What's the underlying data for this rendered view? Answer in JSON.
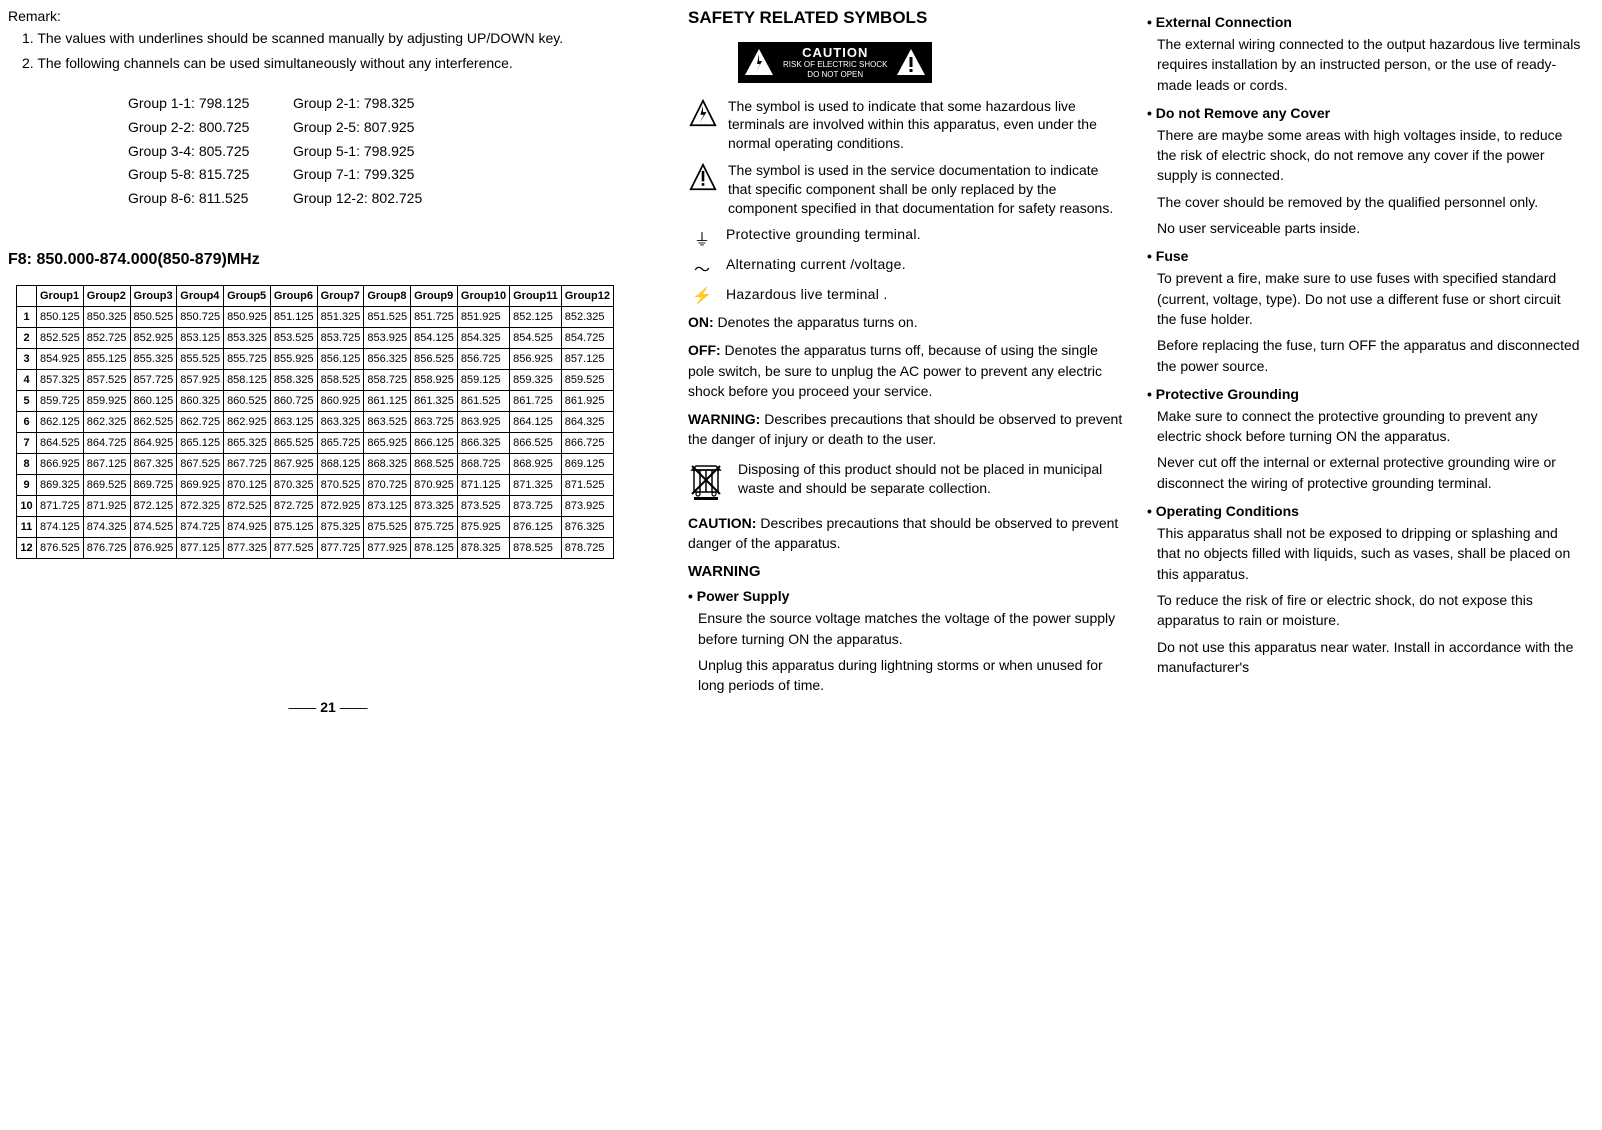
{
  "remark": {
    "title": "Remark:",
    "items": [
      "1. The values with underlines should  be scanned manually by adjusting UP/DOWN key.",
      "2. The following channels can be used simultaneously without any interference."
    ]
  },
  "group_pairs": {
    "left": [
      "Group 1-1: 798.125",
      "Group 2-2: 800.725",
      "Group 3-4: 805.725",
      "Group 5-8: 815.725",
      "Group 8-6: 811.525"
    ],
    "right": [
      "Group 2-1: 798.325",
      "Group 2-5: 807.925",
      "Group 5-1: 798.925",
      "Group 7-1: 799.325",
      "Group 12-2: 802.725"
    ]
  },
  "f8_title": "F8: 850.000-874.000(850-879)MHz",
  "freq_table": {
    "headers": [
      "",
      "Group1",
      "Group2",
      "Group3",
      "Group4",
      "Group5",
      "Group6",
      "Group7",
      "Group8",
      "Group9",
      "Group10",
      "Group11",
      "Group12"
    ],
    "rows": [
      [
        "1",
        "850.125",
        "850.325",
        "850.525",
        "850.725",
        "850.925",
        "851.125",
        "851.325",
        "851.525",
        "851.725",
        "851.925",
        "852.125",
        "852.325"
      ],
      [
        "2",
        "852.525",
        "852.725",
        "852.925",
        "853.125",
        "853.325",
        "853.525",
        "853.725",
        "853.925",
        "854.125",
        "854.325",
        "854.525",
        "854.725"
      ],
      [
        "3",
        "854.925",
        "855.125",
        "855.325",
        "855.525",
        "855.725",
        "855.925",
        "856.125",
        "856.325",
        "856.525",
        "856.725",
        "856.925",
        "857.125"
      ],
      [
        "4",
        "857.325",
        "857.525",
        "857.725",
        "857.925",
        "858.125",
        "858.325",
        "858.525",
        "858.725",
        "858.925",
        "859.125",
        "859.325",
        "859.525"
      ],
      [
        "5",
        "859.725",
        "859.925",
        "860.125",
        "860.325",
        "860.525",
        "860.725",
        "860.925",
        "861.125",
        "861.325",
        "861.525",
        "861.725",
        "861.925"
      ],
      [
        "6",
        "862.125",
        "862.325",
        "862.525",
        "862.725",
        "862.925",
        "863.125",
        "863.325",
        "863.525",
        "863.725",
        "863.925",
        "864.125",
        "864.325"
      ],
      [
        "7",
        "864.525",
        "864.725",
        "864.925",
        "865.125",
        "865.325",
        "865.525",
        "865.725",
        "865.925",
        "866.125",
        "866.325",
        "866.525",
        "866.725"
      ],
      [
        "8",
        "866.925",
        "867.125",
        "867.325",
        "867.525",
        "867.725",
        "867.925",
        "868.125",
        "868.325",
        "868.525",
        "868.725",
        "868.925",
        "869.125"
      ],
      [
        "9",
        "869.325",
        "869.525",
        "869.725",
        "869.925",
        "870.125",
        "870.325",
        "870.525",
        "870.725",
        "870.925",
        "871.125",
        "871.325",
        "871.525"
      ],
      [
        "10",
        "871.725",
        "871.925",
        "872.125",
        "872.325",
        "872.525",
        "872.725",
        "872.925",
        "873.125",
        "873.325",
        "873.525",
        "873.725",
        "873.925"
      ],
      [
        "11",
        "874.125",
        "874.325",
        "874.525",
        "874.725",
        "874.925",
        "875.125",
        "875.325",
        "875.525",
        "875.725",
        "875.925",
        "876.125",
        "876.325"
      ],
      [
        "12",
        "876.525",
        "876.725",
        "876.925",
        "877.125",
        "877.325",
        "877.525",
        "877.725",
        "877.925",
        "878.125",
        "878.325",
        "878.525",
        "878.725"
      ]
    ]
  },
  "page_number": "21",
  "safety_heading": "SAFETY RELATED SYMBOLS",
  "caution_box": {
    "title": "CAUTION",
    "sub1": "RISK OF ELECTRIC SHOCK",
    "sub2": "DO NOT OPEN"
  },
  "symbol_bolt_text": "The symbol is used to indicate that some hazardous live terminals are involved within this apparatus, even under the normal operating conditions.",
  "symbol_excl_text": "The symbol is used in the service documentation to indicate that specific component shall be only replaced by the component specified in that documentation for safety reasons.",
  "defs": [
    {
      "sym": "⏚",
      "txt": "Protective grounding terminal."
    },
    {
      "sym": "〜",
      "txt": "Alternating current /voltage."
    },
    {
      "sym": "⚡",
      "txt": "Hazardous live terminal ."
    }
  ],
  "on_txt_label": "ON:",
  "on_txt": " Denotes the apparatus turns on.",
  "off_txt_label": "OFF:",
  "off_txt": " Denotes the apparatus turns off, because of using the single pole switch, be sure to unplug the AC power to prevent any electric shock before you proceed your service.",
  "warning_txt_label": "WARNING:",
  "warning_txt": " Describes precautions that should be observed to prevent the danger of injury or death to the user.",
  "dispose_txt": "Disposing of this product should not be placed in municipal waste and should be separate collection.",
  "caution_txt_label": "CAUTION:",
  "caution_txt": " Describes precautions that should be observed to prevent danger of the apparatus.",
  "warning_heading": "WARNING",
  "power_supply": {
    "h": "Power Supply",
    "p1": "Ensure the source voltage matches the voltage of the power supply before turning ON the apparatus.",
    "p2": "Unplug this apparatus during lightning storms or when unused for long periods of time."
  },
  "ext_conn": {
    "h": "External Connection",
    "p1": "The external wiring connected to the output hazardous live terminals requires installation by an instructed person, or the use of ready-made leads or cords."
  },
  "no_cover": {
    "h": "Do not Remove any Cover",
    "p1": "There are maybe some areas with high voltages inside, to reduce the risk of electric shock, do not remove any cover if the power supply is connected.",
    "p2": "The cover should be removed by the qualified personnel only.",
    "p3": "No user serviceable parts inside."
  },
  "fuse": {
    "h": "Fuse",
    "p1": "To prevent a fire, make sure to use fuses with specified standard (current, voltage, type). Do not use a different fuse or short circuit the fuse holder.",
    "p2": "Before replacing the fuse, turn OFF the apparatus and disconnected the power source."
  },
  "grounding": {
    "h": "Protective Grounding",
    "p1": "Make sure to connect the protective grounding to prevent any electric shock before turning ON the apparatus.",
    "p2": "Never cut off the internal or external protective grounding wire or disconnect the wiring of protective grounding terminal."
  },
  "op_cond": {
    "h": "Operating Conditions",
    "p1": "This apparatus shall not be exposed to dripping or splashing and that no objects filled with liquids, such as vases, shall be placed on this apparatus.",
    "p2": "To reduce the risk of fire or electric shock, do not expose this apparatus to rain or moisture.",
    "p3": "Do not use this apparatus near water. Install in accordance with the manufacturer's"
  }
}
